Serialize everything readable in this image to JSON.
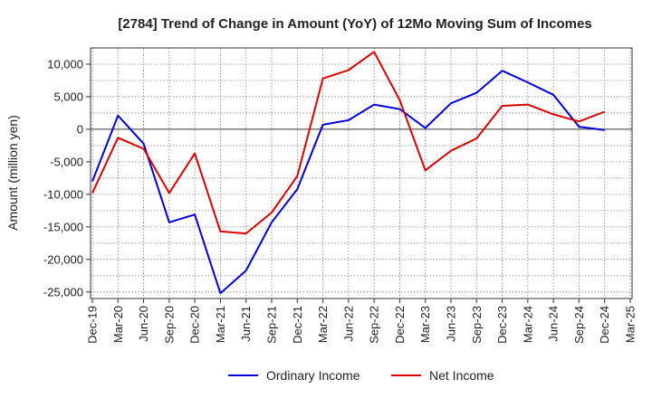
{
  "chart_data": {
    "type": "line",
    "title": "[2784]  Trend of Change in Amount (YoY) of 12Mo Moving Sum of Incomes",
    "xlabel": "",
    "ylabel": "Amount (million yen)",
    "ylim": [
      -26000,
      12500
    ],
    "yticks": [
      10000,
      5000,
      0,
      -5000,
      -10000,
      -15000,
      -20000,
      -25000
    ],
    "ytick_labels": [
      "10,000",
      "5,000",
      "0",
      "-5,000",
      "-10,000",
      "-15,000",
      "-20,000",
      "-25,000"
    ],
    "categories": [
      "Dec-19",
      "Mar-20",
      "Jun-20",
      "Sep-20",
      "Dec-20",
      "Mar-21",
      "Jun-21",
      "Sep-21",
      "Dec-21",
      "Mar-22",
      "Jun-22",
      "Sep-22",
      "Dec-22",
      "Mar-23",
      "Jun-23",
      "Sep-23",
      "Dec-23",
      "Mar-24",
      "Jun-24",
      "Sep-24",
      "Dec-24",
      "Mar-25"
    ],
    "grid": true,
    "legend_position": "bottom",
    "series": [
      {
        "name": "Ordinary Income",
        "color": "#0000dd",
        "values": [
          -8000,
          2100,
          -2200,
          -14300,
          -13100,
          -25200,
          -21700,
          -14300,
          -9200,
          700,
          1400,
          3800,
          3100,
          200,
          4000,
          5600,
          9000,
          7200,
          5300,
          400,
          -100,
          null
        ]
      },
      {
        "name": "Net Income",
        "color": "#dd0000",
        "values": [
          -9800,
          -1300,
          -3000,
          -9800,
          -3700,
          -15700,
          -16000,
          -12800,
          -7200,
          7800,
          9100,
          11900,
          4500,
          -6300,
          -3300,
          -1400,
          3600,
          3800,
          2300,
          1200,
          2700,
          null
        ]
      }
    ]
  }
}
